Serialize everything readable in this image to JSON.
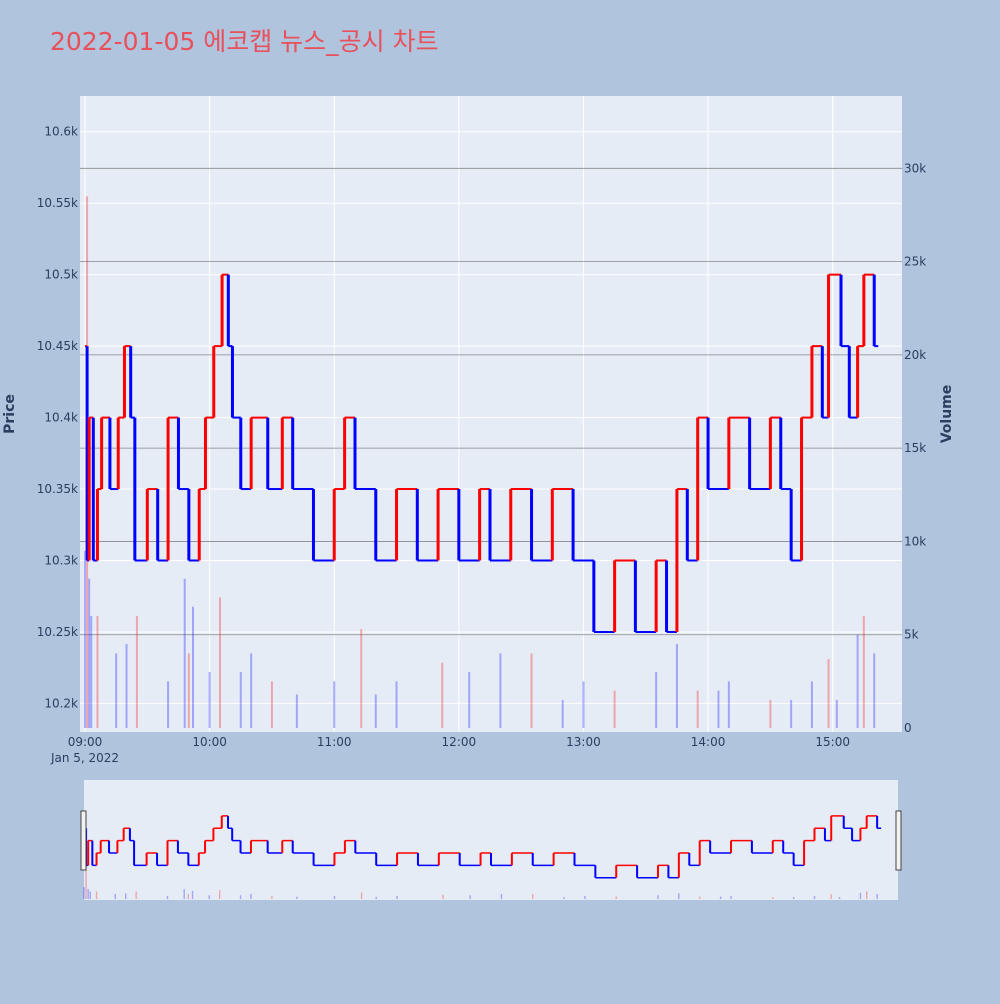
{
  "title": "2022-01-05 에코캡 뉴스_공시 차트",
  "colors": {
    "background": "#b0c4de",
    "plot_bg": "#e5ecf6",
    "up": "#ff0000",
    "down": "#0000ff",
    "title": "#e8505b"
  },
  "chart_data": {
    "type": "ohlc",
    "title": "2022-01-05 에코캡 뉴스_공시 차트",
    "ylabel": "Price",
    "y2label": "Volume",
    "xlabel_date": "Jan 5, 2022",
    "x_range": [
      "09:00",
      "15:30"
    ],
    "x_ticks": [
      "09:00",
      "10:00",
      "11:00",
      "12:00",
      "13:00",
      "14:00",
      "15:00"
    ],
    "price_range": [
      10180,
      10625
    ],
    "price_ticks": [
      10200,
      10250,
      10300,
      10350,
      10400,
      10450,
      10500,
      10550,
      10600
    ],
    "price_tick_labels": [
      "10.2k",
      "10.25k",
      "10.3k",
      "10.35k",
      "10.4k",
      "10.45k",
      "10.5k",
      "10.55k",
      "10.6k"
    ],
    "volume_range": [
      0,
      32000
    ],
    "volume_ticks": [
      0,
      5000,
      10000,
      15000,
      20000,
      25000,
      30000
    ],
    "volume_tick_labels": [
      "0",
      "5k",
      "10k",
      "15k",
      "20k",
      "25k",
      "30k"
    ],
    "price_path": [
      [
        "09:00",
        10450
      ],
      [
        "09:01",
        10300
      ],
      [
        "09:02",
        10400
      ],
      [
        "09:04",
        10300
      ],
      [
        "09:06",
        10350
      ],
      [
        "09:08",
        10400
      ],
      [
        "09:12",
        10350
      ],
      [
        "09:16",
        10400
      ],
      [
        "09:19",
        10450
      ],
      [
        "09:22",
        10400
      ],
      [
        "09:24",
        10300
      ],
      [
        "09:30",
        10350
      ],
      [
        "09:35",
        10300
      ],
      [
        "09:40",
        10400
      ],
      [
        "09:45",
        10350
      ],
      [
        "09:50",
        10300
      ],
      [
        "09:55",
        10350
      ],
      [
        "09:58",
        10400
      ],
      [
        "10:02",
        10450
      ],
      [
        "10:06",
        10500
      ],
      [
        "10:09",
        10450
      ],
      [
        "10:11",
        10400
      ],
      [
        "10:15",
        10350
      ],
      [
        "10:20",
        10400
      ],
      [
        "10:28",
        10350
      ],
      [
        "10:35",
        10400
      ],
      [
        "10:40",
        10350
      ],
      [
        "10:50",
        10300
      ],
      [
        "11:00",
        10350
      ],
      [
        "11:05",
        10400
      ],
      [
        "11:10",
        10350
      ],
      [
        "11:20",
        10300
      ],
      [
        "11:30",
        10350
      ],
      [
        "11:40",
        10300
      ],
      [
        "11:50",
        10350
      ],
      [
        "12:00",
        10300
      ],
      [
        "12:10",
        10350
      ],
      [
        "12:15",
        10300
      ],
      [
        "12:25",
        10350
      ],
      [
        "12:35",
        10300
      ],
      [
        "12:45",
        10350
      ],
      [
        "12:55",
        10300
      ],
      [
        "13:05",
        10250
      ],
      [
        "13:15",
        10300
      ],
      [
        "13:25",
        10250
      ],
      [
        "13:35",
        10300
      ],
      [
        "13:40",
        10250
      ],
      [
        "13:45",
        10350
      ],
      [
        "13:50",
        10300
      ],
      [
        "13:55",
        10400
      ],
      [
        "14:00",
        10350
      ],
      [
        "14:10",
        10400
      ],
      [
        "14:20",
        10350
      ],
      [
        "14:30",
        10400
      ],
      [
        "14:35",
        10350
      ],
      [
        "14:40",
        10300
      ],
      [
        "14:45",
        10400
      ],
      [
        "14:50",
        10450
      ],
      [
        "14:55",
        10400
      ],
      [
        "14:58",
        10500
      ],
      [
        "15:04",
        10450
      ],
      [
        "15:08",
        10400
      ],
      [
        "15:12",
        10450
      ],
      [
        "15:15",
        10500
      ],
      [
        "15:20",
        10450
      ]
    ],
    "volume_spikes": [
      [
        "09:00",
        9500
      ],
      [
        "09:01",
        28500
      ],
      [
        "09:02",
        8000
      ],
      [
        "09:03",
        6000
      ],
      [
        "09:06",
        6000
      ],
      [
        "09:15",
        4000
      ],
      [
        "09:20",
        4500
      ],
      [
        "09:25",
        6000
      ],
      [
        "09:40",
        2500
      ],
      [
        "09:48",
        8000
      ],
      [
        "09:50",
        4000
      ],
      [
        "09:52",
        6500
      ],
      [
        "10:00",
        3000
      ],
      [
        "10:05",
        7000
      ],
      [
        "10:15",
        3000
      ],
      [
        "10:20",
        4000
      ],
      [
        "10:30",
        2500
      ],
      [
        "10:42",
        1800
      ],
      [
        "11:00",
        2500
      ],
      [
        "11:13",
        5300
      ],
      [
        "11:20",
        1800
      ],
      [
        "11:30",
        2500
      ],
      [
        "11:52",
        3500
      ],
      [
        "12:05",
        3000
      ],
      [
        "12:20",
        4000
      ],
      [
        "12:35",
        4000
      ],
      [
        "12:50",
        1500
      ],
      [
        "13:00",
        2500
      ],
      [
        "13:15",
        2000
      ],
      [
        "13:35",
        3000
      ],
      [
        "13:45",
        4500
      ],
      [
        "13:55",
        2000
      ],
      [
        "14:05",
        2000
      ],
      [
        "14:10",
        2500
      ],
      [
        "14:30",
        1500
      ],
      [
        "14:40",
        1500
      ],
      [
        "14:50",
        2500
      ],
      [
        "14:58",
        3700
      ],
      [
        "15:02",
        1500
      ],
      [
        "15:12",
        5000
      ],
      [
        "15:15",
        6000
      ],
      [
        "15:20",
        4000
      ]
    ]
  }
}
